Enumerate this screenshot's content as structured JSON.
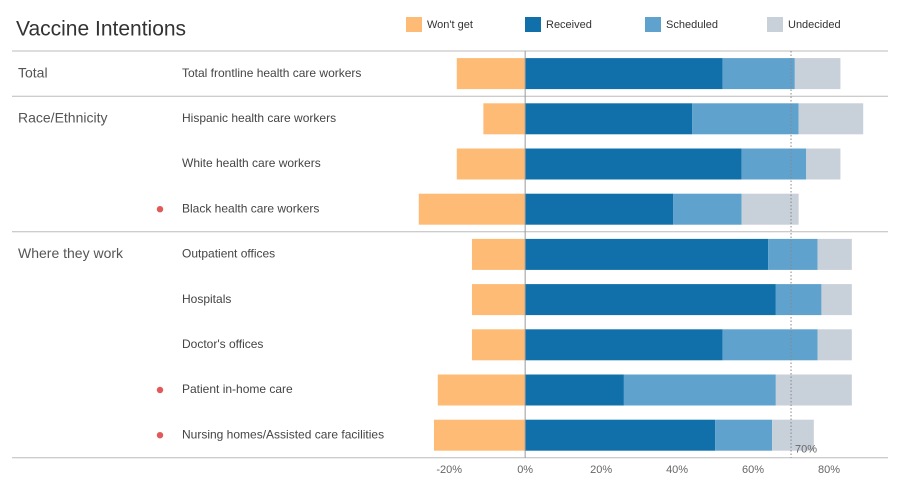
{
  "chart_data": {
    "type": "diverging-bar",
    "title": "Vaccine Intentions",
    "categories": [
      "Total frontline health care workers",
      "Hispanic health care workers",
      "White health care workers",
      "Black health care workers",
      "Outpatient offices",
      "Hospitals",
      "Doctor's offices",
      "Patient in-home care",
      "Nursing homes/Assisted care facilities"
    ],
    "category_groups": [
      "Total",
      "Race/Ethnicity",
      null,
      null,
      "Where they work",
      null,
      null,
      null,
      null
    ],
    "marked": [
      false,
      false,
      false,
      true,
      false,
      false,
      false,
      true,
      true
    ],
    "marker_color": "#e05a5a",
    "series": [
      {
        "name": "Won't get",
        "color": "#fdbb76",
        "values": [
          -18,
          -11,
          -18,
          -28,
          -14,
          -14,
          -14,
          -23,
          -24
        ]
      },
      {
        "name": "Received",
        "color": "#1170aa",
        "values": [
          52,
          44,
          57,
          39,
          64,
          66,
          52,
          26,
          50
        ]
      },
      {
        "name": "Scheduled",
        "color": "#5fa2ce",
        "values": [
          19,
          28,
          17,
          18,
          13,
          12,
          25,
          40,
          15
        ]
      },
      {
        "name": "Undecided",
        "color": "#c8d0d9",
        "values": [
          12,
          17,
          9,
          15,
          9,
          8,
          9,
          20,
          11
        ]
      }
    ],
    "xlim": [
      -34,
      95
    ],
    "xticks": [
      {
        "value": -20,
        "label": "-20%"
      },
      {
        "value": 0,
        "label": "0%"
      },
      {
        "value": 20,
        "label": "20%"
      },
      {
        "value": 40,
        "label": "40%"
      },
      {
        "value": 60,
        "label": "60%"
      },
      {
        "value": 80,
        "label": "80%"
      }
    ],
    "reference_line": {
      "value": 70,
      "label": "70%"
    }
  }
}
